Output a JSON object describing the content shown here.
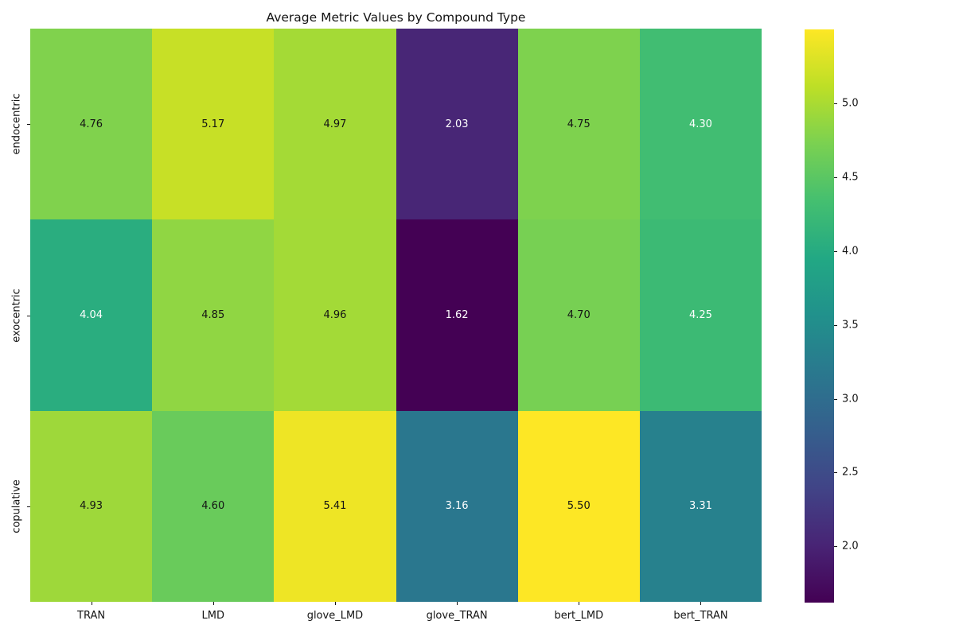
{
  "figure": {
    "background": "#ffffff",
    "text_color": "#141414"
  },
  "chart_data": {
    "type": "heatmap",
    "title": "Average Metric Values by Compound Type",
    "x_tick_labels": [
      "TRAN",
      "LMD",
      "glove_LMD",
      "glove_TRAN",
      "bert_LMD",
      "bert_TRAN"
    ],
    "y_tick_labels": [
      "endocentric",
      "exocentric",
      "copulative"
    ],
    "series": [
      {
        "name": "endocentric",
        "values": [
          4.76,
          5.17,
          4.97,
          2.03,
          4.75,
          4.3
        ]
      },
      {
        "name": "exocentric",
        "values": [
          4.04,
          4.85,
          4.96,
          1.62,
          4.7,
          4.25
        ]
      },
      {
        "name": "copulative",
        "values": [
          4.93,
          4.6,
          5.41,
          3.16,
          5.5,
          3.31
        ]
      }
    ],
    "annotation_decimals": 2,
    "colormap": {
      "name": "viridis",
      "vmin": 1.62,
      "vmax": 5.5,
      "stops": [
        "#440154",
        "#482475",
        "#414487",
        "#355f8d",
        "#2a788e",
        "#21918c",
        "#22a884",
        "#44bf70",
        "#7ad151",
        "#bddf26",
        "#fde725"
      ]
    },
    "annotation_colors": {
      "on_dark": "#ffffff",
      "on_light": "#141414",
      "white_below_value": 4.5
    },
    "colorbar": {
      "position": "right",
      "ticks": [
        5.0,
        4.5,
        4.0,
        3.5,
        3.0,
        2.5,
        2.0
      ],
      "tick_decimals": 1
    },
    "grid": false,
    "legend_position": "colorbar-right"
  }
}
